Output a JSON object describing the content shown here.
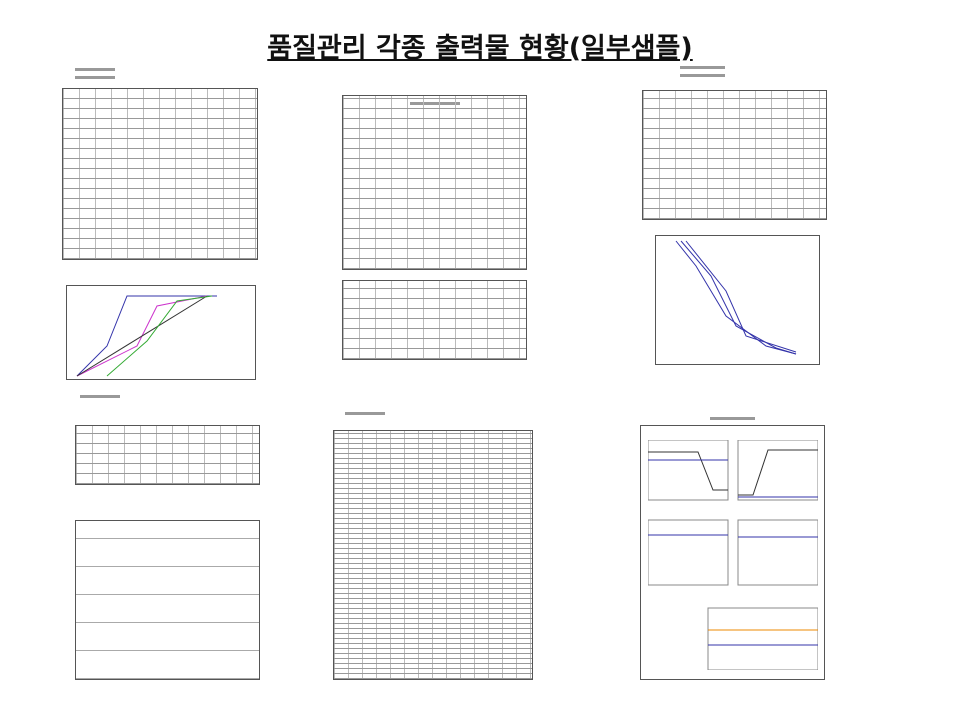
{
  "slide": {
    "title": "품질관리 각종 출력물 현황(일부샘플)"
  },
  "colors": {
    "line_blue": "#3344aa",
    "line_grey": "#666666"
  },
  "thumbnails": [
    {
      "kind": "table-with-chart"
    },
    {
      "kind": "table"
    },
    {
      "kind": "table-with-chart"
    },
    {
      "kind": "calculation-sheet"
    },
    {
      "kind": "dense-table"
    },
    {
      "kind": "chart-panels"
    }
  ]
}
